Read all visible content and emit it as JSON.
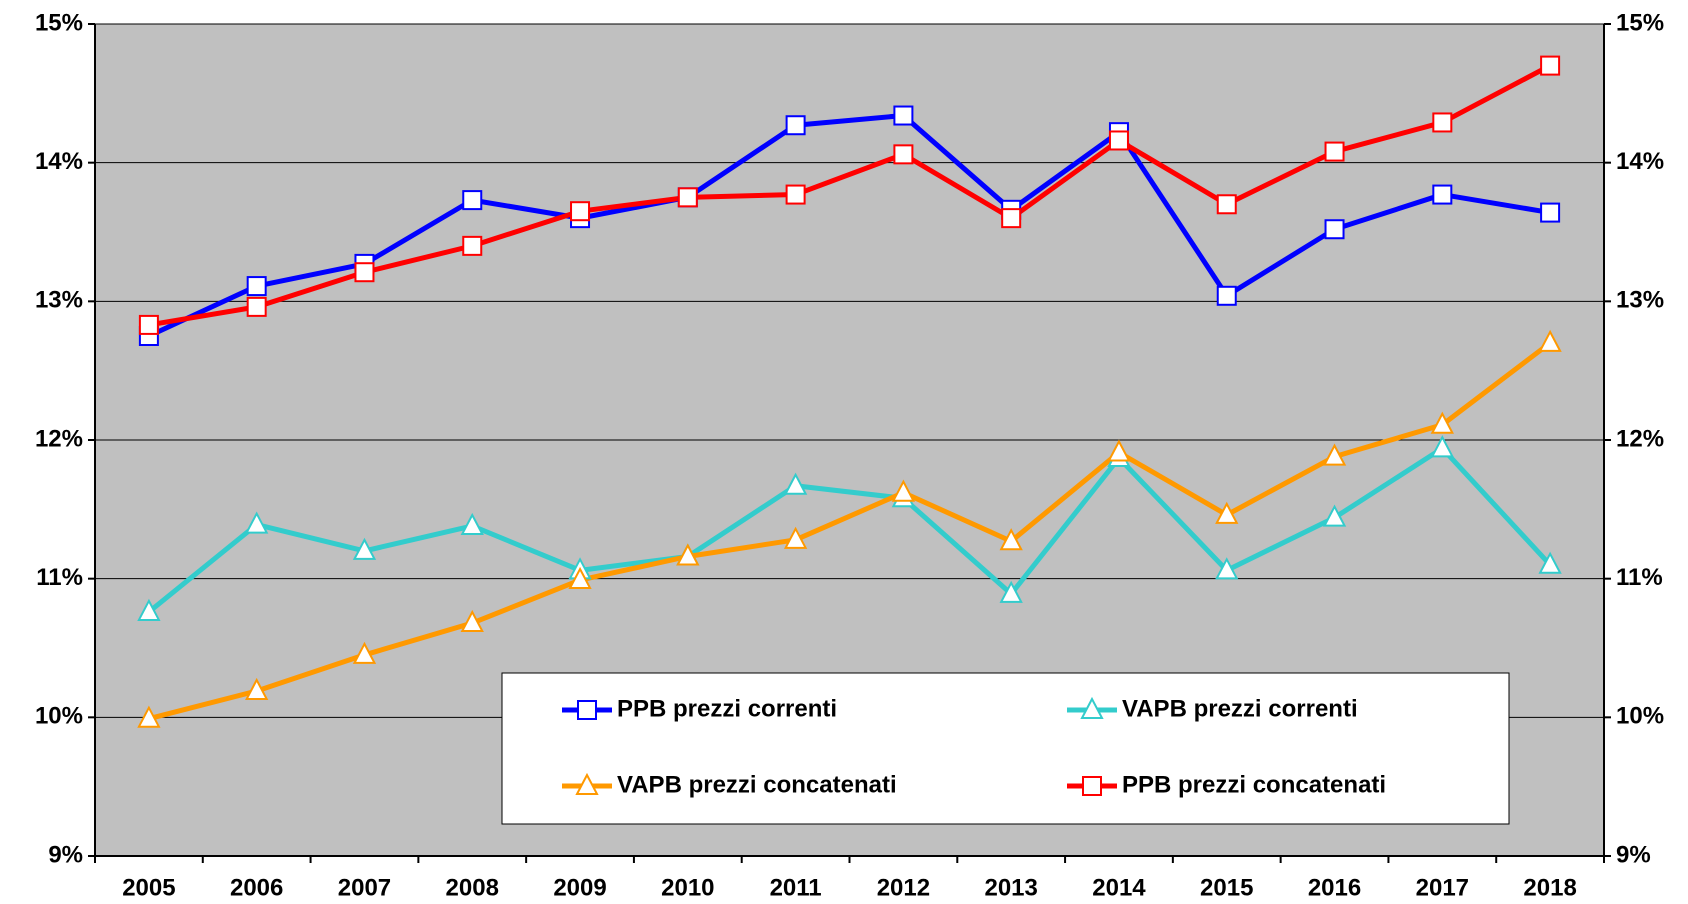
{
  "chart_data": {
    "type": "line",
    "categories": [
      "2005",
      "2006",
      "2007",
      "2008",
      "2009",
      "2010",
      "2011",
      "2012",
      "2013",
      "2014",
      "2015",
      "2016",
      "2017",
      "2018"
    ],
    "series": [
      {
        "name": "PPB prezzi correnti",
        "color": "#0000ff",
        "marker": "square",
        "values": [
          12.75,
          13.11,
          13.27,
          13.73,
          13.6,
          13.75,
          14.27,
          14.34,
          13.66,
          14.22,
          13.04,
          13.52,
          13.77,
          13.64
        ]
      },
      {
        "name": "VAPB prezzi correnti",
        "color": "#33cccc",
        "marker": "triangle",
        "values": [
          10.76,
          11.39,
          11.2,
          11.38,
          11.06,
          11.16,
          11.67,
          11.58,
          10.89,
          11.87,
          11.06,
          11.44,
          11.94,
          11.1
        ]
      },
      {
        "name": "VAPB prezzi concatenati",
        "color": "#ff9900",
        "marker": "triangle",
        "values": [
          9.99,
          10.19,
          10.45,
          10.68,
          10.99,
          11.16,
          11.28,
          11.62,
          11.27,
          11.91,
          11.46,
          11.88,
          12.11,
          12.7
        ]
      },
      {
        "name": "PPB prezzi concatenati",
        "color": "#ff0000",
        "marker": "square",
        "values": [
          12.83,
          12.96,
          13.21,
          13.4,
          13.65,
          13.75,
          13.77,
          14.06,
          13.6,
          14.16,
          13.7,
          14.08,
          14.29,
          14.7
        ]
      }
    ],
    "ylim": [
      9,
      15
    ],
    "yticks": [
      {
        "value": 9,
        "label": "9%"
      },
      {
        "value": 10,
        "label": "10%"
      },
      {
        "value": 11,
        "label": "11%"
      },
      {
        "value": 12,
        "label": "12%"
      },
      {
        "value": 13,
        "label": "13%"
      },
      {
        "value": 14,
        "label": "14%"
      },
      {
        "value": 15,
        "label": "15%"
      }
    ],
    "y2lim": [
      9,
      15
    ],
    "y2ticks": [
      {
        "value": 9,
        "label": "9%"
      },
      {
        "value": 10,
        "label": "10%"
      },
      {
        "value": 11,
        "label": "11%"
      },
      {
        "value": 12,
        "label": "12%"
      },
      {
        "value": 13,
        "label": "13%"
      },
      {
        "value": 14,
        "label": "14%"
      },
      {
        "value": 15,
        "label": "15%"
      }
    ],
    "grid": true,
    "legend": "bottom-right",
    "plot_background": "#c0c0c0"
  }
}
